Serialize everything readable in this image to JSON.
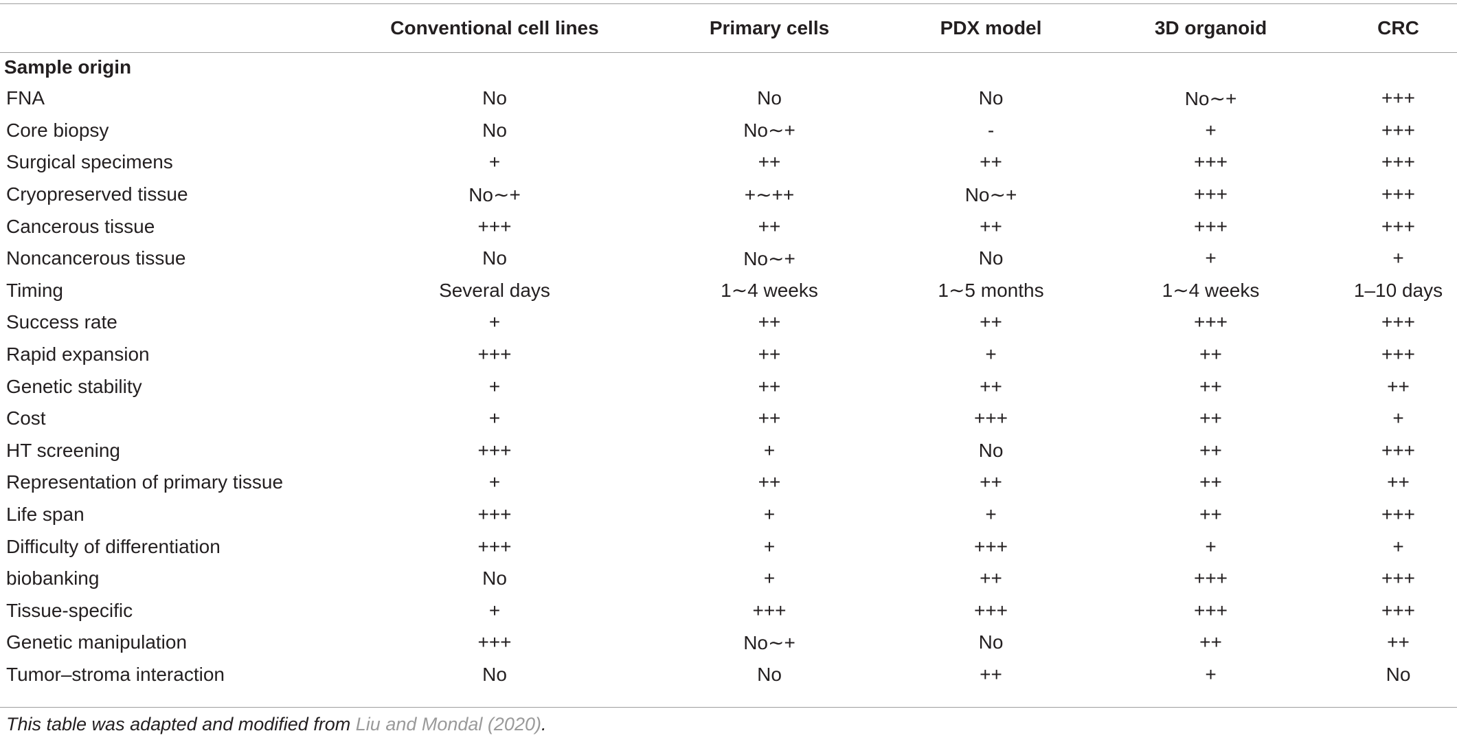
{
  "table": {
    "columns": [
      "",
      "Conventional cell lines",
      "Primary cells",
      "PDX model",
      "3D organoid",
      "CRC"
    ],
    "section_label": "Sample origin",
    "rows": [
      {
        "label": "FNA",
        "values": [
          "No",
          "No",
          "No",
          "No∼+",
          "+++"
        ]
      },
      {
        "label": "Core biopsy",
        "values": [
          "No",
          "No∼+",
          "-",
          "+",
          "+++"
        ]
      },
      {
        "label": "Surgical specimens",
        "values": [
          "+",
          "++",
          "++",
          "+++",
          "+++"
        ]
      },
      {
        "label": "Cryopreserved tissue",
        "values": [
          "No∼+",
          "+∼++",
          "No∼+",
          "+++",
          "+++"
        ]
      },
      {
        "label": "Cancerous tissue",
        "values": [
          "+++",
          "++",
          "++",
          "+++",
          "+++"
        ]
      },
      {
        "label": "Noncancerous tissue",
        "values": [
          "No",
          "No∼+",
          "No",
          "+",
          "+"
        ]
      },
      {
        "label": "Timing",
        "values": [
          "Several days",
          "1∼4 weeks",
          "1∼5 months",
          "1∼4 weeks",
          "1–10 days"
        ]
      },
      {
        "label": "Success rate",
        "values": [
          "+",
          "++",
          "++",
          "+++",
          "+++"
        ]
      },
      {
        "label": "Rapid expansion",
        "values": [
          "+++",
          "++",
          "+",
          "++",
          "+++"
        ]
      },
      {
        "label": "Genetic stability",
        "values": [
          "+",
          "++",
          "++",
          "++",
          "++"
        ]
      },
      {
        "label": "Cost",
        "values": [
          "+",
          "++",
          "+++",
          "++",
          "+"
        ]
      },
      {
        "label": "HT screening",
        "values": [
          "+++",
          "+",
          "No",
          "++",
          "+++"
        ]
      },
      {
        "label": "Representation of primary tissue",
        "values": [
          "+",
          "++",
          "++",
          "++",
          "++"
        ]
      },
      {
        "label": "Life span",
        "values": [
          "+++",
          "+",
          "+",
          "++",
          "+++"
        ]
      },
      {
        "label": "Difficulty of differentiation",
        "values": [
          "+++",
          "+",
          "+++",
          "+",
          "+"
        ]
      },
      {
        "label": "biobanking",
        "values": [
          "No",
          "+",
          "++",
          "+++",
          "+++"
        ]
      },
      {
        "label": "Tissue-specific",
        "values": [
          "+",
          "+++",
          "+++",
          "+++",
          "+++"
        ]
      },
      {
        "label": "Genetic manipulation",
        "values": [
          "+++",
          "No∼+",
          "No",
          "++",
          "++"
        ]
      },
      {
        "label": "Tumor–stroma interaction",
        "values": [
          "No",
          "No",
          "++",
          "+",
          "No"
        ]
      }
    ]
  },
  "footnote": {
    "text": "This table was adapted and modified from ",
    "ref": "Liu and Mondal (2020)",
    "end": "."
  },
  "colors": {
    "text": "#231f20",
    "rule": "#9c9c9c",
    "ref_link": "#9a9a9a"
  }
}
